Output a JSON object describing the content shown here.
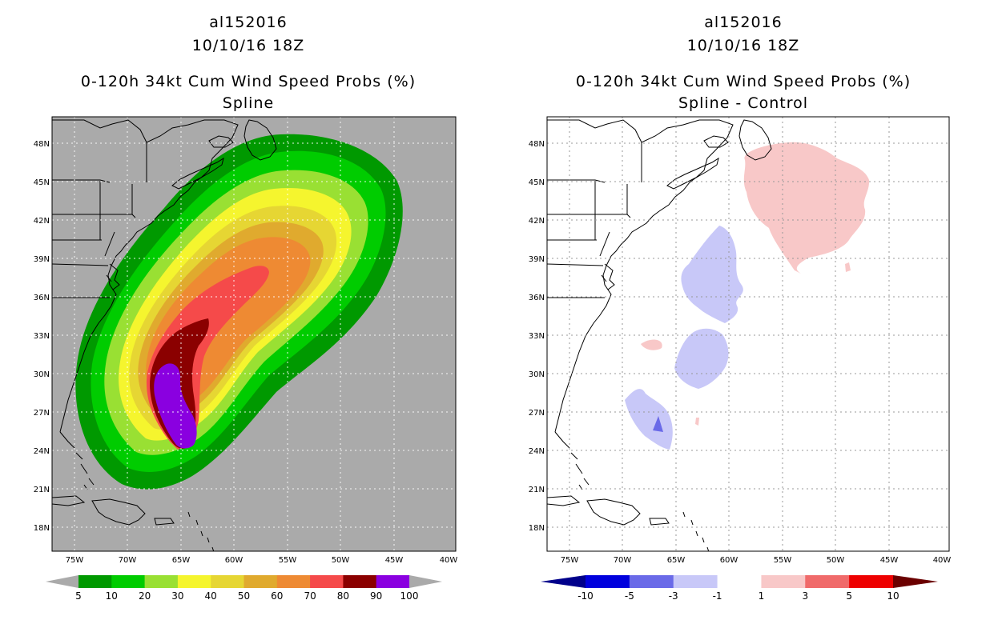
{
  "left_panel": {
    "storm_id": "al152016",
    "datetime": "10/10/16 18Z",
    "product": "0-120h 34kt Cum Wind Speed Probs (%)",
    "subtitle": "Spline",
    "background_color": "#aaaaaa",
    "colorbar": {
      "under_color": "#aaaaaa",
      "over_color": "#aaaaaa",
      "colors": [
        "#009900",
        "#00cc00",
        "#99e033",
        "#f5f52e",
        "#e6d633",
        "#e0aa2e",
        "#ee8a33",
        "#f54a4a",
        "#8b0000",
        "#8a00e0"
      ],
      "labels": [
        "5",
        "10",
        "20",
        "30",
        "40",
        "50",
        "60",
        "70",
        "80",
        "90",
        "100"
      ]
    }
  },
  "right_panel": {
    "storm_id": "al152016",
    "datetime": "10/10/16 18Z",
    "product": "0-120h 34kt Cum Wind Speed Probs (%)",
    "subtitle": "Spline - Control",
    "background_color": "#ffffff",
    "colorbar": {
      "under_color": "#00008b",
      "over_color": "#6b0000",
      "colors": [
        "#0000dd",
        "#6a6ae8",
        "#c8c8f8",
        "#ffffff",
        "#f8c8c8",
        "#f06a6a",
        "#ee0000"
      ],
      "labels": [
        "-10",
        "-5",
        "-3",
        "-1",
        "1",
        "3",
        "5",
        "10"
      ]
    }
  },
  "map": {
    "lat_labels": [
      "48N",
      "45N",
      "42N",
      "39N",
      "36N",
      "33N",
      "30N",
      "27N",
      "24N",
      "21N",
      "18N"
    ],
    "lon_labels": [
      "75W",
      "70W",
      "65W",
      "60W",
      "55W",
      "50W",
      "45W",
      "40W"
    ]
  }
}
